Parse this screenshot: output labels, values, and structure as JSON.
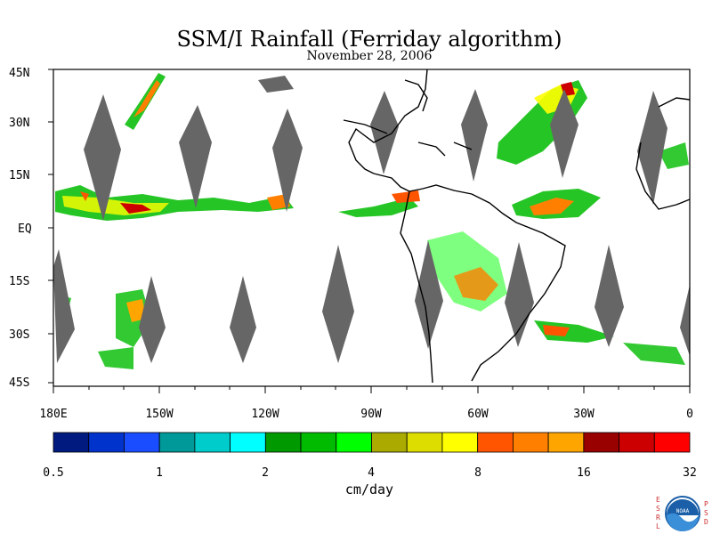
{
  "title": "SSM/I Rainfall (Ferriday algorithm)",
  "date": "November 28, 2006",
  "units": "cm/day",
  "lat_labels": [
    "45N",
    "30N",
    "15N",
    "EQ",
    "15S",
    "30S",
    "45S"
  ],
  "lon_labels": [
    "180E",
    "150W",
    "120W",
    "90W",
    "60W",
    "30W",
    "0"
  ],
  "colorbar": {
    "colors": [
      "#001a80",
      "#0033cc",
      "#1a4dff",
      "#009999",
      "#00cccc",
      "#00ffff",
      "#009900",
      "#00bb00",
      "#00ff00",
      "#aaaa00",
      "#dddd00",
      "#ffff00",
      "#ff5500",
      "#ff8000",
      "#ffa500",
      "#990000",
      "#cc0000",
      "#ff0000"
    ],
    "tick_labels": [
      "0.5",
      "1",
      "2",
      "4",
      "8",
      "16",
      "32"
    ]
  },
  "logo": {
    "left_letters": [
      "E",
      "S",
      "R",
      "L"
    ],
    "right_letters": [
      "P",
      "S",
      "D"
    ],
    "center_text": "NOAA"
  }
}
